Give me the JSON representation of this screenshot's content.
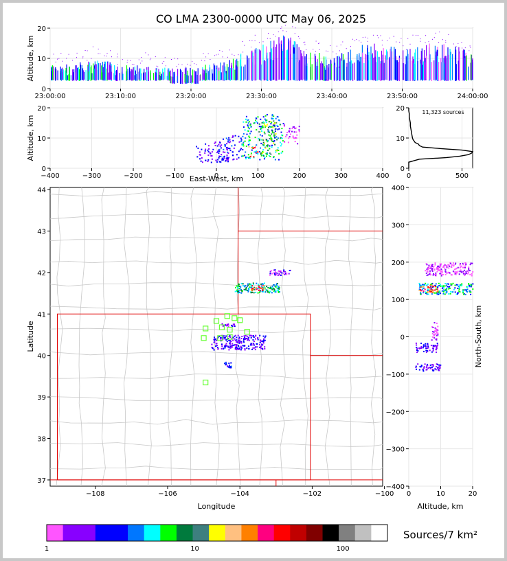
{
  "chart_data": [
    {
      "id": "time-height",
      "type": "heatmap",
      "title": "CO LMA 2300-0000 UTC May 06, 2025",
      "xlabel": "",
      "ylabel": "Altitude, km",
      "x_ticks": [
        "23:00:00",
        "23:10:00",
        "23:20:00",
        "23:30:00",
        "23:40:00",
        "23:50:00",
        "24:00:00"
      ],
      "xlim_minutes": [
        0,
        60
      ],
      "ylim": [
        0,
        20
      ],
      "y_ticks": [
        0,
        10,
        20
      ],
      "grid": true,
      "bursts": [
        {
          "t": 0.5,
          "lo": 3,
          "hi": 8
        },
        {
          "t": 1.5,
          "lo": 3,
          "hi": 8
        },
        {
          "t": 2.5,
          "lo": 3,
          "hi": 8
        },
        {
          "t": 3.5,
          "lo": 3,
          "hi": 9
        },
        {
          "t": 4.5,
          "lo": 3,
          "hi": 9
        },
        {
          "t": 5.5,
          "lo": 3,
          "hi": 9
        },
        {
          "t": 6.5,
          "lo": 3,
          "hi": 10
        },
        {
          "t": 7.5,
          "lo": 3,
          "hi": 9
        },
        {
          "t": 8.5,
          "lo": 3,
          "hi": 9
        },
        {
          "t": 9.5,
          "lo": 3,
          "hi": 8
        },
        {
          "t": 10.5,
          "lo": 3,
          "hi": 8
        },
        {
          "t": 11.5,
          "lo": 3,
          "hi": 8
        },
        {
          "t": 12.5,
          "lo": 3,
          "hi": 8
        },
        {
          "t": 13.5,
          "lo": 3,
          "hi": 8
        },
        {
          "t": 14.5,
          "lo": 3,
          "hi": 7
        },
        {
          "t": 15.5,
          "lo": 3,
          "hi": 7
        },
        {
          "t": 16.5,
          "lo": 3,
          "hi": 7
        },
        {
          "t": 17.5,
          "lo": 2,
          "hi": 7
        },
        {
          "t": 18.5,
          "lo": 2,
          "hi": 7
        },
        {
          "t": 19.5,
          "lo": 2,
          "hi": 7
        },
        {
          "t": 20.5,
          "lo": 2,
          "hi": 7
        },
        {
          "t": 21.5,
          "lo": 3,
          "hi": 8
        },
        {
          "t": 22.5,
          "lo": 3,
          "hi": 8
        },
        {
          "t": 23.5,
          "lo": 3,
          "hi": 9
        },
        {
          "t": 24.5,
          "lo": 3,
          "hi": 9
        },
        {
          "t": 25.5,
          "lo": 3,
          "hi": 10
        },
        {
          "t": 26.5,
          "lo": 3,
          "hi": 10
        },
        {
          "t": 27.5,
          "lo": 3,
          "hi": 12
        },
        {
          "t": 28.5,
          "lo": 3,
          "hi": 13
        },
        {
          "t": 29.5,
          "lo": 3,
          "hi": 14
        },
        {
          "t": 30.5,
          "lo": 3,
          "hi": 15
        },
        {
          "t": 31.5,
          "lo": 3,
          "hi": 16
        },
        {
          "t": 32.5,
          "lo": 3,
          "hi": 17
        },
        {
          "t": 33.5,
          "lo": 3,
          "hi": 18
        },
        {
          "t": 34.5,
          "lo": 3,
          "hi": 17
        },
        {
          "t": 35.5,
          "lo": 3,
          "hi": 14
        },
        {
          "t": 36.5,
          "lo": 3,
          "hi": 12
        },
        {
          "t": 37.5,
          "lo": 3,
          "hi": 12
        },
        {
          "t": 38.5,
          "lo": 3,
          "hi": 12
        },
        {
          "t": 39.5,
          "lo": 3,
          "hi": 11
        },
        {
          "t": 40.5,
          "lo": 3,
          "hi": 11
        },
        {
          "t": 41.5,
          "lo": 3,
          "hi": 12
        },
        {
          "t": 42.5,
          "lo": 3,
          "hi": 13
        },
        {
          "t": 43.5,
          "lo": 3,
          "hi": 14
        },
        {
          "t": 44.5,
          "lo": 3,
          "hi": 15
        },
        {
          "t": 45.5,
          "lo": 3,
          "hi": 15
        },
        {
          "t": 46.5,
          "lo": 3,
          "hi": 15
        },
        {
          "t": 47.5,
          "lo": 3,
          "hi": 14
        },
        {
          "t": 48.5,
          "lo": 3,
          "hi": 14
        },
        {
          "t": 49.5,
          "lo": 3,
          "hi": 13
        },
        {
          "t": 50.5,
          "lo": 3,
          "hi": 13
        },
        {
          "t": 51.5,
          "lo": 3,
          "hi": 14
        },
        {
          "t": 52.5,
          "lo": 3,
          "hi": 14
        },
        {
          "t": 53.5,
          "lo": 3,
          "hi": 15
        },
        {
          "t": 54.5,
          "lo": 3,
          "hi": 15
        },
        {
          "t": 55.5,
          "lo": 3,
          "hi": 15
        },
        {
          "t": 56.5,
          "lo": 3,
          "hi": 14
        },
        {
          "t": 57.5,
          "lo": 3,
          "hi": 14
        },
        {
          "t": 58.5,
          "lo": 3,
          "hi": 13
        },
        {
          "t": 59.5,
          "lo": 3,
          "hi": 12
        }
      ]
    },
    {
      "id": "ew-altitude",
      "type": "heatmap",
      "xlabel": "East-West, km",
      "ylabel": "Altitude, km",
      "xlim": [
        -400,
        400
      ],
      "x_ticks": [
        -400,
        -300,
        -200,
        -100,
        0,
        100,
        200,
        300,
        400
      ],
      "ylim": [
        0,
        20
      ],
      "y_ticks": [
        0,
        10,
        20
      ],
      "grid": true,
      "clusters": [
        {
          "x0": -50,
          "x1": 30,
          "z0": 2,
          "z1": 9,
          "level": 3
        },
        {
          "x0": 0,
          "x1": 60,
          "z0": 3,
          "z1": 11,
          "level": 4
        },
        {
          "x0": 60,
          "x1": 160,
          "z0": 3,
          "z1": 18,
          "level": 6
        },
        {
          "x0": 75,
          "x1": 100,
          "z0": 4,
          "z1": 8,
          "level": 13
        },
        {
          "x0": 100,
          "x1": 145,
          "z0": 4,
          "z1": 16,
          "level": 9
        },
        {
          "x0": 160,
          "x1": 200,
          "z0": 8,
          "z1": 15,
          "level": 1
        }
      ]
    },
    {
      "id": "altitude-histogram",
      "type": "line",
      "annotation": "11,323 sources",
      "xlim": [
        0,
        600
      ],
      "x_ticks": [
        0,
        500
      ],
      "ylim": [
        0,
        20
      ],
      "y_ticks": [
        0,
        10,
        20
      ],
      "grid": true,
      "altitude": [
        0,
        2,
        3,
        3.5,
        4,
        4.5,
        5,
        5.5,
        6,
        6.5,
        7,
        7.5,
        8,
        8.5,
        9,
        9.5,
        10,
        11,
        12,
        13,
        14,
        15,
        16,
        17,
        18,
        19,
        20
      ],
      "count": [
        0,
        0,
        100,
        350,
        480,
        560,
        590,
        600,
        500,
        300,
        130,
        100,
        90,
        60,
        50,
        40,
        35,
        30,
        25,
        20,
        15,
        15,
        10,
        5,
        5,
        0,
        0
      ]
    },
    {
      "id": "plan-view",
      "type": "heatmap",
      "xlabel": "Longitude",
      "ylabel": "Latitude",
      "xlim": [
        -109.25,
        -100.05
      ],
      "x_ticks": [
        -108,
        -106,
        -104,
        -102,
        -100
      ],
      "ylim": [
        36.85,
        44.05
      ],
      "y_ticks": [
        37,
        38,
        39,
        40,
        41,
        42,
        43,
        44
      ],
      "state_lines": [
        [
          [
            -109.05,
            37
          ],
          [
            -109.05,
            41
          ],
          [
            -102.05,
            41
          ],
          [
            -102.05,
            37
          ],
          [
            -109.05,
            37
          ]
        ],
        [
          [
            -104.05,
            41
          ],
          [
            -104.05,
            44.05
          ]
        ],
        [
          [
            -104.05,
            43
          ],
          [
            -100.05,
            43
          ]
        ],
        [
          [
            -102.05,
            40
          ],
          [
            -100.05,
            40
          ]
        ],
        [
          [
            -103,
            37
          ],
          [
            -103,
            36.85
          ]
        ],
        [
          [
            -109.25,
            37
          ],
          [
            -100.05,
            37
          ]
        ]
      ],
      "stations": [
        [
          -104.35,
          40.95
        ],
        [
          -104.15,
          40.9
        ],
        [
          -104.0,
          40.85
        ],
        [
          -104.65,
          40.83
        ],
        [
          -104.5,
          40.68
        ],
        [
          -104.95,
          40.65
        ],
        [
          -104.28,
          40.62
        ],
        [
          -103.8,
          40.57
        ],
        [
          -104.28,
          40.45
        ],
        [
          -104.55,
          40.42
        ],
        [
          -105.0,
          40.42
        ],
        [
          -104.95,
          39.35
        ]
      ],
      "clusters": [
        {
          "lon0": -104.15,
          "lon1": -102.9,
          "lat0": 41.52,
          "lat1": 41.76,
          "level": 7
        },
        {
          "lon0": -103.7,
          "lon1": -103.3,
          "lat0": 41.58,
          "lat1": 41.7,
          "level": 13
        },
        {
          "lon0": -103.2,
          "lon1": -102.6,
          "lat0": 41.95,
          "lat1": 42.08,
          "level": 2
        },
        {
          "lon0": -104.8,
          "lon1": -103.3,
          "lat0": 40.15,
          "lat1": 40.5,
          "level": 3
        },
        {
          "lon0": -104.45,
          "lon1": -104.25,
          "lat0": 39.72,
          "lat1": 39.86,
          "level": 4
        },
        {
          "lon0": -104.55,
          "lon1": -104.15,
          "lat0": 40.72,
          "lat1": 40.78,
          "level": 2
        }
      ]
    },
    {
      "id": "altitude-ns",
      "type": "heatmap",
      "xlabel": "Altitude, km",
      "ylabel": "North-South, km",
      "xlim": [
        0,
        20
      ],
      "x_ticks": [
        0,
        10,
        20
      ],
      "ylim": [
        -400,
        400
      ],
      "y_ticks": [
        -400,
        -300,
        -200,
        -100,
        0,
        100,
        200,
        300,
        400
      ],
      "grid": true,
      "clusters": [
        {
          "z0": 3,
          "z1": 20,
          "n0": 115,
          "n1": 145,
          "level": 6
        },
        {
          "z0": 3,
          "z1": 9,
          "n0": 120,
          "n1": 140,
          "level": 13
        },
        {
          "z0": 5,
          "z1": 20,
          "n0": 165,
          "n1": 200,
          "level": 1
        },
        {
          "z0": 2,
          "z1": 9,
          "n0": -40,
          "n1": -15,
          "level": 3
        },
        {
          "z0": 2,
          "z1": 10,
          "n0": -90,
          "n1": -70,
          "level": 3
        },
        {
          "z0": 7,
          "z1": 9,
          "n0": -10,
          "n1": 40,
          "level": 1
        }
      ]
    },
    {
      "id": "colorbar",
      "type": "colorbar",
      "label": "Sources/7 km²",
      "scale": "log",
      "range": [
        1,
        200
      ],
      "ticks": [
        {
          "value": 1,
          "label": "1"
        },
        {
          "value": 10,
          "label": "10"
        },
        {
          "value": 100,
          "label": "100"
        }
      ],
      "colors": [
        "#ff55ff",
        "#8800ff",
        "#8800ff",
        "#0000ff",
        "#0000ff",
        "#0077ff",
        "#00ffff",
        "#00ff00",
        "#007a3d",
        "#3d7f7f",
        "#ffff00",
        "#ffc080",
        "#ff8000",
        "#ff0080",
        "#ff0000",
        "#c00000",
        "#800000",
        "#000000",
        "#808080",
        "#c0c0c0",
        "#ffffff"
      ]
    }
  ]
}
